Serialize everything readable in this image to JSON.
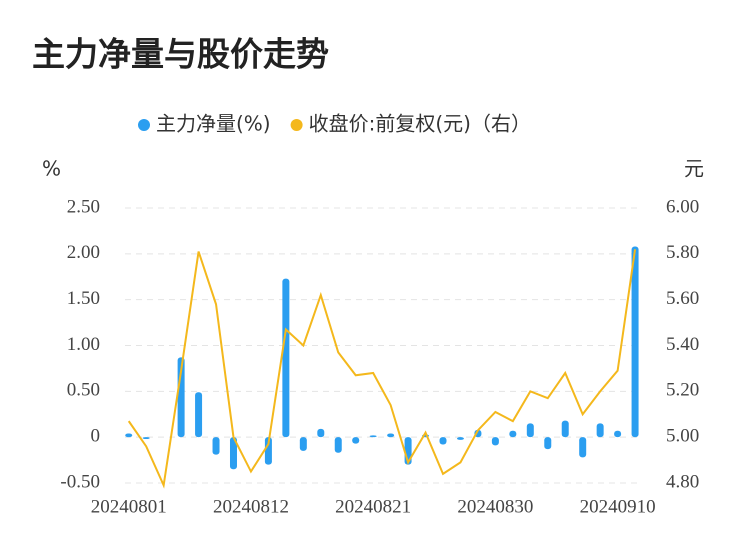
{
  "chart_data": {
    "type": "bar_line",
    "title": "主力净量与股价走势",
    "y_label": "%",
    "y2_label": "元",
    "categories": [
      "20240801",
      null,
      null,
      null,
      null,
      null,
      null,
      "20240812",
      null,
      null,
      null,
      null,
      null,
      null,
      "20240821",
      null,
      null,
      null,
      null,
      null,
      null,
      "20240830",
      null,
      null,
      null,
      null,
      null,
      null,
      "20240910",
      null
    ],
    "series": [
      {
        "name": "主力净量(%)",
        "color": "#2b9ef0",
        "kind": "bar",
        "values": [
          0.04,
          -0.02,
          0,
          0.87,
          0.49,
          -0.19,
          -0.35,
          0,
          -0.3,
          1.73,
          -0.15,
          0.09,
          -0.17,
          -0.07,
          0.02,
          0.04,
          -0.3,
          0.03,
          -0.08,
          -0.03,
          0.08,
          -0.09,
          0.07,
          0.15,
          -0.13,
          0.18,
          -0.22,
          0.15,
          0.07,
          2.08
        ]
      },
      {
        "name": "收盘价:前复权(元)（右）",
        "color": "#f4b81c",
        "kind": "line",
        "axis": "y2",
        "values": [
          5.07,
          4.96,
          4.79,
          5.29,
          5.81,
          5.58,
          5.0,
          4.85,
          4.97,
          5.47,
          5.4,
          5.62,
          5.37,
          5.27,
          5.28,
          5.14,
          4.89,
          5.02,
          4.84,
          4.89,
          5.03,
          5.11,
          5.07,
          5.2,
          5.17,
          5.28,
          5.1,
          5.2,
          5.29,
          5.82
        ]
      }
    ],
    "ylim": [
      -0.5,
      2.5
    ],
    "yticks": [
      {
        "value": -0.5,
        "label": "-0.50"
      },
      0,
      {
        "value": 0.5,
        "label": "0.50"
      },
      {
        "value": 1,
        "label": "1.00"
      },
      {
        "value": 1.5,
        "label": "1.50"
      },
      {
        "value": 2,
        "label": "2.00"
      },
      {
        "value": 2.5,
        "label": "2.50"
      }
    ],
    "y2lim": [
      4.8,
      6.0
    ],
    "y2ticks": [
      {
        "value": 4.8,
        "label": "4.80"
      },
      {
        "value": 5,
        "label": "5.00"
      },
      {
        "value": 5.2,
        "label": "5.20"
      },
      {
        "value": 5.4,
        "label": "5.40"
      },
      {
        "value": 5.6,
        "label": "5.60"
      },
      {
        "value": 5.8,
        "label": "5.80"
      },
      {
        "value": 6,
        "label": "6.00"
      }
    ],
    "grid": true
  }
}
